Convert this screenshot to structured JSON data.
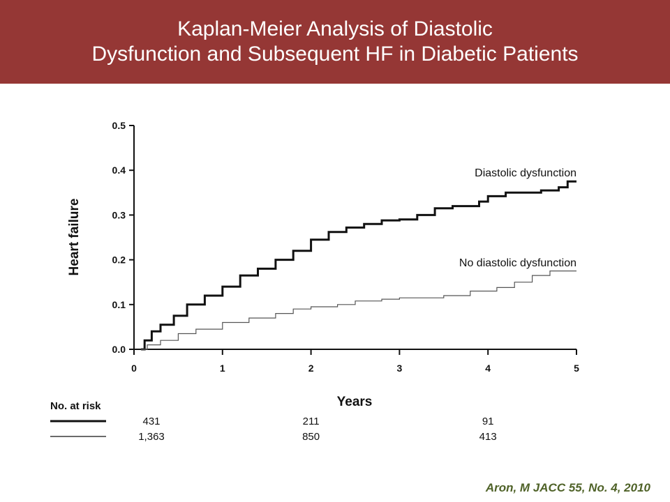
{
  "header": {
    "title_line1": "Kaplan-Meier Analysis of Diastolic",
    "title_line2": "Dysfunction and Subsequent HF in Diabetic Patients",
    "background": "#953735"
  },
  "citation": "Aron, M JACC 55, No. 4, 2010",
  "chart_data": {
    "type": "line",
    "xlabel": "Years",
    "ylabel": "Heart failure",
    "xlim": [
      0,
      5
    ],
    "ylim": [
      0,
      0.5
    ],
    "x_ticks": [
      "0",
      "1",
      "2",
      "3",
      "4",
      "5"
    ],
    "y_ticks": [
      "0.0",
      "0.1",
      "0.2",
      "0.3",
      "0.4",
      "0.5"
    ],
    "grid": false,
    "series": [
      {
        "name": "Diastolic dysfunction",
        "color": "#111111",
        "points": [
          [
            0.08,
            0.0
          ],
          [
            0.12,
            0.02
          ],
          [
            0.2,
            0.04
          ],
          [
            0.3,
            0.055
          ],
          [
            0.45,
            0.075
          ],
          [
            0.6,
            0.1
          ],
          [
            0.8,
            0.12
          ],
          [
            1.0,
            0.14
          ],
          [
            1.2,
            0.165
          ],
          [
            1.4,
            0.18
          ],
          [
            1.6,
            0.2
          ],
          [
            1.8,
            0.22
          ],
          [
            2.0,
            0.245
          ],
          [
            2.2,
            0.262
          ],
          [
            2.4,
            0.272
          ],
          [
            2.6,
            0.28
          ],
          [
            2.8,
            0.288
          ],
          [
            3.0,
            0.29
          ],
          [
            3.2,
            0.3
          ],
          [
            3.4,
            0.315
          ],
          [
            3.6,
            0.32
          ],
          [
            3.9,
            0.33
          ],
          [
            4.0,
            0.342
          ],
          [
            4.2,
            0.35
          ],
          [
            4.6,
            0.355
          ],
          [
            4.8,
            0.362
          ],
          [
            4.9,
            0.375
          ],
          [
            5.0,
            0.375
          ]
        ]
      },
      {
        "name": "No diastolic dysfunction",
        "color": "#555555",
        "points": [
          [
            0.08,
            0.0
          ],
          [
            0.15,
            0.01
          ],
          [
            0.3,
            0.02
          ],
          [
            0.5,
            0.035
          ],
          [
            0.7,
            0.045
          ],
          [
            1.0,
            0.06
          ],
          [
            1.3,
            0.07
          ],
          [
            1.6,
            0.08
          ],
          [
            1.8,
            0.09
          ],
          [
            2.0,
            0.095
          ],
          [
            2.3,
            0.1
          ],
          [
            2.5,
            0.108
          ],
          [
            2.8,
            0.112
          ],
          [
            3.0,
            0.115
          ],
          [
            3.5,
            0.12
          ],
          [
            3.8,
            0.13
          ],
          [
            4.1,
            0.138
          ],
          [
            4.3,
            0.15
          ],
          [
            4.5,
            0.165
          ],
          [
            4.7,
            0.175
          ],
          [
            5.0,
            0.175
          ]
        ]
      }
    ],
    "at_risk": {
      "heading": "No. at risk",
      "times": [
        0,
        2,
        4
      ],
      "rows": [
        {
          "series": "Diastolic dysfunction",
          "values": [
            "431",
            "211",
            "91"
          ]
        },
        {
          "series": "No diastolic dysfunction",
          "values": [
            "1,363",
            "850",
            "413"
          ]
        }
      ]
    }
  }
}
